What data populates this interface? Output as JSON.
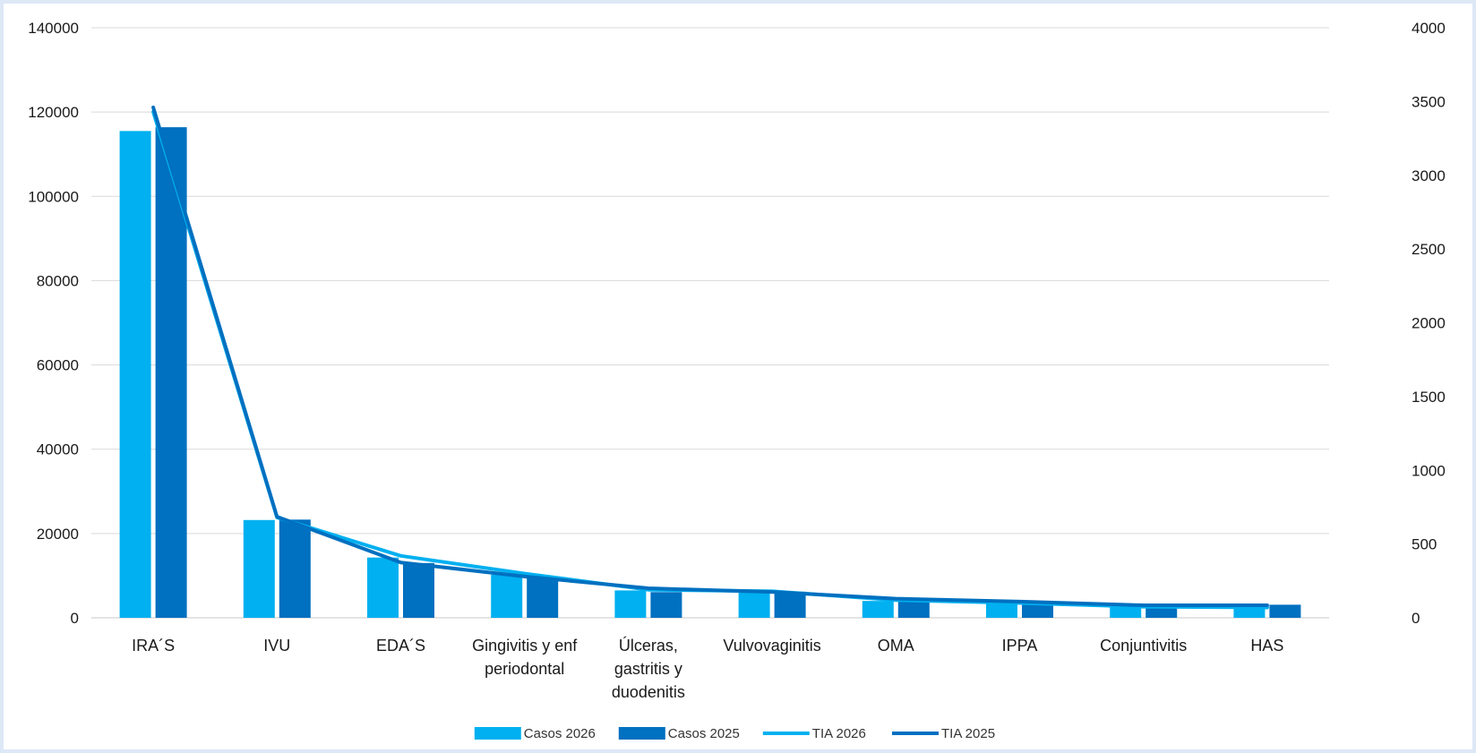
{
  "chart_data": {
    "type": "bar",
    "categories": [
      [
        "IRA´S"
      ],
      [
        "IVU"
      ],
      [
        "EDA´S"
      ],
      [
        "Gingivitis y enf",
        "periodontal"
      ],
      [
        "Úlceras,",
        "gastritis y",
        "duodenitis"
      ],
      [
        "Vulvovaginitis"
      ],
      [
        "OMA"
      ],
      [
        "IPPA"
      ],
      [
        "Conjuntivitis"
      ],
      [
        "HAS"
      ]
    ],
    "series": [
      {
        "name": "Casos 2026",
        "kind": "bar",
        "axis": "left",
        "color": "#00b0f0",
        "values": [
          115500,
          23200,
          14300,
          10200,
          6500,
          6200,
          4000,
          3500,
          2600,
          2600
        ]
      },
      {
        "name": "Casos 2025",
        "kind": "bar",
        "axis": "left",
        "color": "#0070c0",
        "values": [
          116400,
          23300,
          13000,
          9600,
          6100,
          6200,
          4300,
          4000,
          2900,
          3100
        ]
      },
      {
        "name": "TIA 2026",
        "kind": "line",
        "axis": "right",
        "color": "#00b0f0",
        "values": [
          3430,
          680,
          420,
          300,
          190,
          180,
          120,
          100,
          75,
          70
        ]
      },
      {
        "name": "TIA 2025",
        "kind": "line",
        "axis": "right",
        "color": "#0070c0",
        "values": [
          3460,
          685,
          375,
          280,
          200,
          175,
          130,
          110,
          85,
          85
        ]
      }
    ],
    "y_left": {
      "min": 0,
      "max": 140000,
      "ticks": [
        0,
        20000,
        40000,
        60000,
        80000,
        100000,
        120000,
        140000
      ]
    },
    "y_right": {
      "min": 0,
      "max": 4000,
      "ticks": [
        0,
        500,
        1000,
        1500,
        2000,
        2500,
        3000,
        3500,
        4000
      ]
    },
    "grid": true,
    "legend_position": "bottom"
  }
}
